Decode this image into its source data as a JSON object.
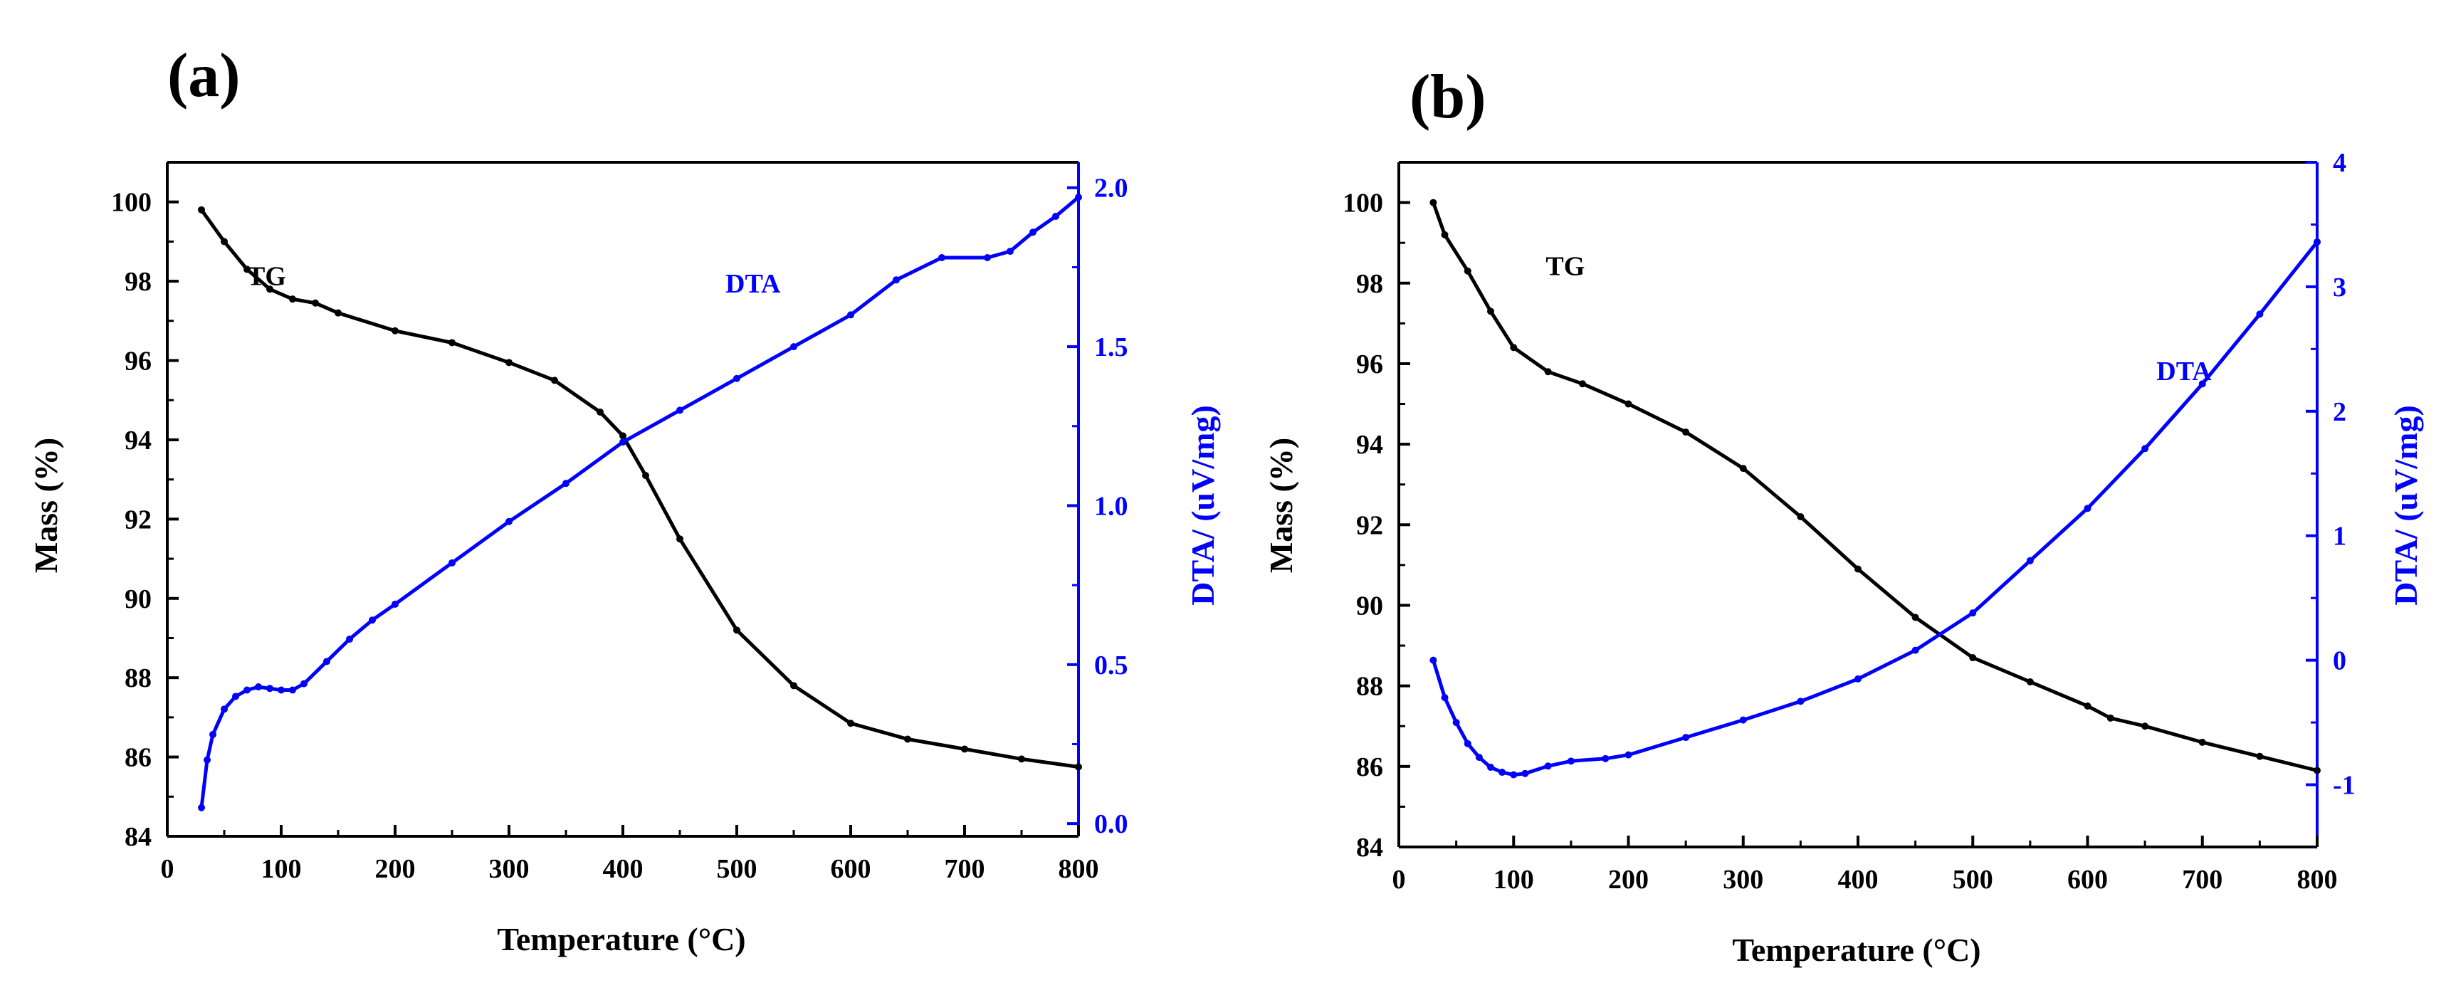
{
  "chart_data": [
    {
      "panel_label": "(a)",
      "type": "line",
      "xlabel": "Temperature (°C)",
      "ylabel": "Mass (%)",
      "y2label": "DTA/ (uV/mg)",
      "xlim": [
        0,
        800
      ],
      "ylim": [
        84,
        101
      ],
      "y2lim": [
        -0.04,
        2.08
      ],
      "xticks": [
        0,
        100,
        200,
        300,
        400,
        500,
        600,
        700,
        800
      ],
      "yticks": [
        84,
        86,
        88,
        90,
        92,
        94,
        96,
        98,
        100
      ],
      "y2ticks": [
        0.0,
        0.5,
        1.0,
        1.5,
        2.0
      ],
      "y2ticklabels": [
        "0.0",
        "0.5",
        "1.0",
        "1.5",
        "2.0"
      ],
      "grid": false,
      "series": [
        {
          "name": "TG",
          "axis": "left",
          "color": "#000000",
          "label_at": [
            70,
            97.9
          ],
          "x": [
            30,
            50,
            70,
            90,
            110,
            130,
            150,
            200,
            250,
            300,
            340,
            380,
            400,
            420,
            450,
            500,
            550,
            600,
            650,
            700,
            750,
            800
          ],
          "y": [
            99.8,
            99.0,
            98.3,
            97.8,
            97.55,
            97.45,
            97.2,
            96.75,
            96.45,
            95.95,
            95.5,
            94.7,
            94.1,
            93.1,
            91.5,
            89.2,
            87.8,
            86.85,
            86.45,
            86.2,
            85.95,
            85.75
          ]
        },
        {
          "name": "DTA",
          "axis": "right",
          "color": "#0000ff",
          "label_at": [
            490,
            1.67
          ],
          "x": [
            30,
            35,
            40,
            50,
            60,
            70,
            80,
            90,
            100,
            110,
            120,
            140,
            160,
            180,
            200,
            250,
            300,
            350,
            400,
            450,
            500,
            550,
            600,
            640,
            680,
            720,
            740,
            760,
            780,
            800
          ],
          "y": [
            0.05,
            0.2,
            0.28,
            0.36,
            0.4,
            0.42,
            0.43,
            0.425,
            0.42,
            0.42,
            0.44,
            0.51,
            0.58,
            0.64,
            0.69,
            0.82,
            0.95,
            1.07,
            1.2,
            1.3,
            1.4,
            1.5,
            1.6,
            1.71,
            1.78,
            1.78,
            1.8,
            1.86,
            1.91,
            1.97
          ]
        }
      ]
    },
    {
      "panel_label": "(b)",
      "type": "line",
      "xlabel": "Temperature (°C)",
      "ylabel": "Mass (%)",
      "y2label": "DTA/ (uV/mg)",
      "xlim": [
        0,
        800
      ],
      "ylim": [
        84,
        101
      ],
      "y2lim": [
        -1.5,
        4.0
      ],
      "xticks": [
        0,
        100,
        200,
        300,
        400,
        500,
        600,
        700,
        800
      ],
      "yticks": [
        84,
        86,
        88,
        90,
        92,
        94,
        96,
        98,
        100
      ],
      "y2ticks": [
        -1,
        0,
        1,
        2,
        3,
        4
      ],
      "y2ticklabels": [
        "-1",
        "0",
        "1",
        "2",
        "3",
        "4"
      ],
      "grid": false,
      "series": [
        {
          "name": "TG",
          "axis": "left",
          "color": "#000000",
          "label_at": [
            128,
            98.2
          ],
          "x": [
            30,
            40,
            60,
            80,
            100,
            130,
            160,
            200,
            250,
            300,
            350,
            400,
            450,
            500,
            550,
            600,
            620,
            650,
            700,
            750,
            800
          ],
          "y": [
            100.0,
            99.2,
            98.3,
            97.3,
            96.4,
            95.8,
            95.5,
            95.0,
            94.3,
            93.4,
            92.2,
            90.9,
            89.7,
            88.7,
            88.1,
            87.5,
            87.2,
            87.0,
            86.6,
            86.25,
            85.9
          ]
        },
        {
          "name": "DTA",
          "axis": "right",
          "color": "#0000ff",
          "label_at": [
            660,
            2.25
          ],
          "x": [
            30,
            40,
            50,
            60,
            70,
            80,
            90,
            100,
            110,
            130,
            150,
            180,
            200,
            250,
            300,
            350,
            400,
            450,
            500,
            550,
            600,
            650,
            700,
            750,
            800
          ],
          "y": [
            0.0,
            -0.3,
            -0.5,
            -0.67,
            -0.78,
            -0.86,
            -0.9,
            -0.92,
            -0.91,
            -0.85,
            -0.81,
            -0.79,
            -0.76,
            -0.62,
            -0.48,
            -0.33,
            -0.15,
            0.08,
            0.38,
            0.8,
            1.22,
            1.7,
            2.22,
            2.78,
            3.36
          ]
        }
      ]
    }
  ]
}
